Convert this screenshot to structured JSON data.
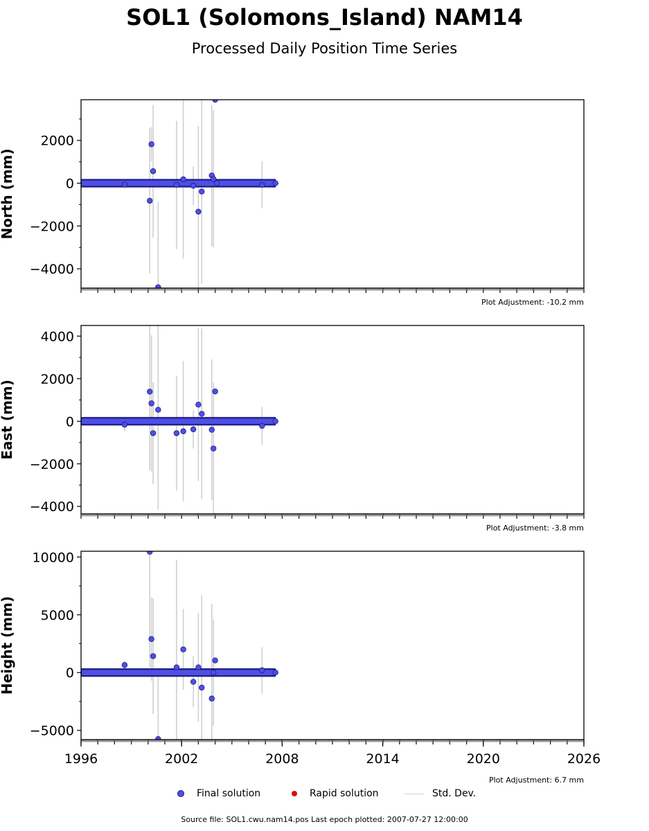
{
  "header": {
    "title": "SOL1 (Solomons_Island) NAM14",
    "subtitle": "Processed Daily Position Time Series"
  },
  "legend": {
    "final": "Final solution",
    "rapid": "Rapid solution",
    "std": "Std. Dev."
  },
  "footer": {
    "source": "Source file: SOL1.cwu.nam14.pos  Last epoch plotted: 2007-07-27 12:00:00"
  },
  "colors": {
    "final_fill": "#4f4fe6",
    "final_edge": "#1c1c80",
    "rapid_fill": "#d01010",
    "std_dev": "#d0d0d0"
  },
  "chart_data": [
    {
      "type": "scatter",
      "ylabel": "North (mm)",
      "adjustment": "Plot Adjustment: -10.2 mm",
      "xlim": [
        1996,
        2026
      ],
      "ylim": [
        -4900,
        3900
      ],
      "yticks": [
        -4000,
        -2000,
        0,
        2000
      ],
      "yticks_labels": [
        "−4000",
        "−2000",
        "0",
        "2000"
      ],
      "x_tick_labels": [],
      "series": [
        {
          "values": [
            {
              "x": 1998.6,
              "y": -60,
              "err": 200
            },
            {
              "x": 2000.1,
              "y": -820,
              "err": 3400
            },
            {
              "x": 2000.2,
              "y": 1820,
              "err": 800
            },
            {
              "x": 2000.3,
              "y": 560,
              "err": 3100
            },
            {
              "x": 2000.6,
              "y": -4860,
              "err": 4000
            },
            {
              "x": 2001.7,
              "y": -80,
              "err": 3000
            },
            {
              "x": 2002.1,
              "y": 180,
              "err": 3700
            },
            {
              "x": 2002.7,
              "y": -120,
              "err": 900
            },
            {
              "x": 2003.0,
              "y": -1330,
              "err": 4000
            },
            {
              "x": 2003.2,
              "y": -390,
              "err": 4300
            },
            {
              "x": 2003.8,
              "y": 360,
              "err": 3300
            },
            {
              "x": 2003.9,
              "y": 200,
              "err": 3200
            },
            {
              "x": 2004.0,
              "y": 3900,
              "err": 0
            },
            {
              "x": 2004.1,
              "y": 0,
              "err": 100
            },
            {
              "x": 2006.8,
              "y": -80,
              "err": 1100
            },
            {
              "x": 2007.6,
              "y": 0,
              "err": 50
            }
          ],
          "bulk": {
            "x_start": 1996.0,
            "x_end": 2007.57,
            "y": 0
          }
        }
      ]
    },
    {
      "type": "scatter",
      "ylabel": "East (mm)",
      "adjustment": "Plot Adjustment: -3.8 mm",
      "xlim": [
        1996,
        2026
      ],
      "ylim": [
        -4350,
        4500
      ],
      "yticks": [
        -4000,
        -2000,
        0,
        2000,
        4000
      ],
      "yticks_labels": [
        "−4000",
        "−2000",
        "0",
        "2000",
        "4000"
      ],
      "x_tick_labels": [],
      "series": [
        {
          "values": [
            {
              "x": 1998.6,
              "y": -160,
              "err": 300
            },
            {
              "x": 2000.1,
              "y": 1390,
              "err": 3700
            },
            {
              "x": 2000.2,
              "y": 840,
              "err": 3200
            },
            {
              "x": 2000.3,
              "y": -560,
              "err": 2400
            },
            {
              "x": 2000.6,
              "y": 540,
              "err": 4700
            },
            {
              "x": 2001.7,
              "y": -560,
              "err": 2700
            },
            {
              "x": 2002.1,
              "y": -470,
              "err": 3300
            },
            {
              "x": 2002.7,
              "y": -380,
              "err": 900
            },
            {
              "x": 2003.0,
              "y": 780,
              "err": 3600
            },
            {
              "x": 2003.2,
              "y": 350,
              "err": 4000
            },
            {
              "x": 2003.8,
              "y": -400,
              "err": 3300
            },
            {
              "x": 2003.9,
              "y": -1280,
              "err": 3100
            },
            {
              "x": 2004.0,
              "y": 1400,
              "err": 0
            },
            {
              "x": 2006.8,
              "y": -220,
              "err": 900
            },
            {
              "x": 2007.6,
              "y": 0,
              "err": 50
            }
          ],
          "bulk": {
            "x_start": 1996.0,
            "x_end": 2007.57,
            "y": 0
          }
        }
      ]
    },
    {
      "type": "scatter",
      "ylabel": "Height (mm)",
      "adjustment": "Plot Adjustment: 6.7 mm",
      "xlim": [
        1996,
        2026
      ],
      "ylim": [
        -5800,
        10500
      ],
      "yticks": [
        -5000,
        0,
        5000,
        10000
      ],
      "yticks_labels": [
        "−5000",
        "0",
        "5000",
        "10000"
      ],
      "x_tick_labels": [
        "1996",
        "2002",
        "2008",
        "2014",
        "2020",
        "2026"
      ],
      "x_tick_values": [
        1996,
        2002,
        2008,
        2014,
        2020,
        2026
      ],
      "series": [
        {
          "values": [
            {
              "x": 1998.6,
              "y": 650,
              "err": 400
            },
            {
              "x": 2000.1,
              "y": 10450,
              "err": 10000
            },
            {
              "x": 2000.2,
              "y": 2900,
              "err": 3600
            },
            {
              "x": 2000.3,
              "y": 1420,
              "err": 5000
            },
            {
              "x": 2000.6,
              "y": -5750,
              "err": 6000
            },
            {
              "x": 2001.7,
              "y": 450,
              "err": 9300
            },
            {
              "x": 2002.1,
              "y": 2000,
              "err": 3500
            },
            {
              "x": 2002.7,
              "y": -800,
              "err": 2200
            },
            {
              "x": 2003.0,
              "y": 450,
              "err": 4700
            },
            {
              "x": 2003.2,
              "y": -1300,
              "err": 8000
            },
            {
              "x": 2003.8,
              "y": -2250,
              "err": 8200
            },
            {
              "x": 2003.9,
              "y": 0,
              "err": 4600
            },
            {
              "x": 2004.0,
              "y": 1050,
              "err": 0
            },
            {
              "x": 2006.8,
              "y": 200,
              "err": 2000
            },
            {
              "x": 2007.6,
              "y": 0,
              "err": 50
            }
          ],
          "bulk": {
            "x_start": 1996.0,
            "x_end": 2007.57,
            "y": 0
          }
        }
      ]
    }
  ]
}
